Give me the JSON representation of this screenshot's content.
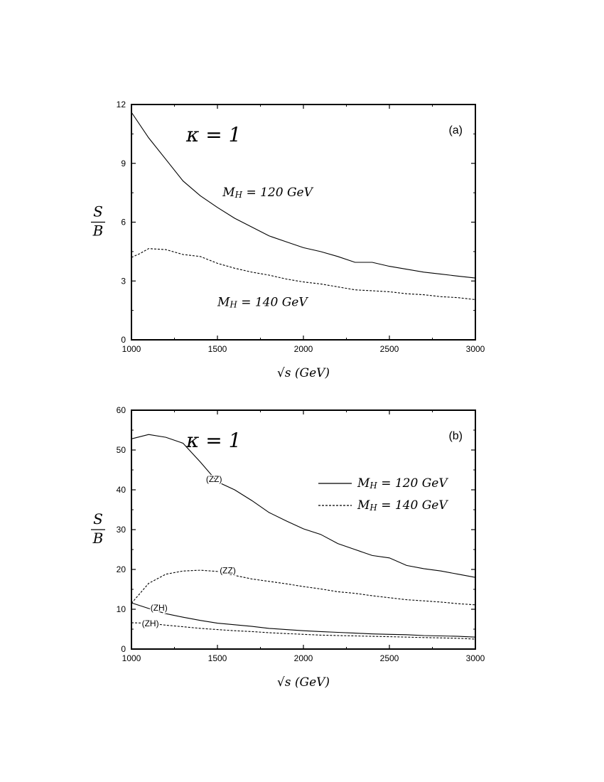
{
  "chart_data": [
    {
      "type": "line",
      "panel_label": "(a)",
      "annotation": "κ = 1",
      "xlabel": "√s (GeV)",
      "ylabel_num": "S",
      "ylabel_den": "B",
      "xlim": [
        1000,
        3000
      ],
      "ylim": [
        0,
        12
      ],
      "xticks": [
        1000,
        1500,
        2000,
        2500,
        3000
      ],
      "yticks": [
        0,
        3,
        6,
        9,
        12
      ],
      "series": [
        {
          "name": "M_H = 120 GeV",
          "style": "solid",
          "x": [
            1000,
            1100,
            1200,
            1300,
            1400,
            1500,
            1600,
            1700,
            1800,
            1900,
            2000,
            2100,
            2200,
            2300,
            2400,
            2500,
            2600,
            2700,
            2800,
            2900,
            3000
          ],
          "y": [
            11.6,
            10.3,
            9.2,
            8.1,
            7.35,
            6.75,
            6.2,
            5.75,
            5.3,
            5.0,
            4.7,
            4.5,
            4.25,
            3.95,
            3.95,
            3.75,
            3.6,
            3.45,
            3.35,
            3.25,
            3.15
          ]
        },
        {
          "name": "M_H = 140 GeV",
          "style": "dashed",
          "x": [
            1000,
            1050,
            1100,
            1200,
            1300,
            1400,
            1500,
            1600,
            1700,
            1800,
            1900,
            2000,
            2100,
            2200,
            2300,
            2400,
            2500,
            2600,
            2700,
            2800,
            2900,
            3000
          ],
          "y": [
            4.2,
            4.4,
            4.65,
            4.6,
            4.35,
            4.25,
            3.9,
            3.65,
            3.45,
            3.3,
            3.1,
            2.95,
            2.85,
            2.7,
            2.55,
            2.5,
            2.45,
            2.35,
            2.3,
            2.2,
            2.15,
            2.05
          ]
        }
      ],
      "labels": [
        {
          "text": "M_H = 120 GeV",
          "x": 1530,
          "y": 7.5
        },
        {
          "text": "M_H = 140 GeV",
          "x": 1500,
          "y": 1.9
        }
      ]
    },
    {
      "type": "line",
      "panel_label": "(b)",
      "annotation": "κ = 1",
      "xlabel": "√s (GeV)",
      "ylabel_num": "S",
      "ylabel_den": "B",
      "xlim": [
        1000,
        3000
      ],
      "ylim": [
        0,
        60
      ],
      "xticks": [
        1000,
        1500,
        2000,
        2500,
        3000
      ],
      "yticks": [
        0,
        10,
        20,
        30,
        40,
        50,
        60
      ],
      "legend": [
        {
          "label": "M_H = 120 GeV",
          "style": "solid"
        },
        {
          "label": "M_H = 140 GeV",
          "style": "dashed"
        }
      ],
      "legend_position": "top-right",
      "series": [
        {
          "name": "(ZZ) M_H = 120 GeV",
          "style": "solid",
          "x": [
            1000,
            1100,
            1200,
            1300,
            1400,
            1500,
            1600,
            1700,
            1800,
            1900,
            2000,
            2100,
            2200,
            2300,
            2400,
            2500,
            2600,
            2700,
            2800,
            2900,
            3000
          ],
          "y": [
            52.8,
            53.9,
            53.2,
            51.7,
            47.0,
            42.0,
            40.0,
            37.3,
            34.3,
            32.2,
            30.2,
            28.8,
            26.5,
            25.0,
            23.5,
            22.9,
            21.0,
            20.2,
            19.6,
            18.8,
            18.0
          ]
        },
        {
          "name": "(ZZ) M_H = 140 GeV",
          "style": "dashed",
          "x": [
            1000,
            1100,
            1200,
            1300,
            1400,
            1500,
            1600,
            1700,
            1800,
            1900,
            2000,
            2100,
            2200,
            2300,
            2400,
            2500,
            2600,
            2700,
            2800,
            2900,
            3000
          ],
          "y": [
            11.5,
            16.5,
            18.8,
            19.6,
            19.8,
            19.5,
            18.5,
            17.6,
            17.0,
            16.4,
            15.7,
            15.1,
            14.4,
            14.0,
            13.4,
            12.9,
            12.4,
            12.1,
            11.8,
            11.4,
            11.1
          ]
        },
        {
          "name": "(ZH) M_H = 120 GeV",
          "style": "solid",
          "x": [
            1000,
            1100,
            1200,
            1300,
            1400,
            1500,
            1600,
            1700,
            1800,
            1900,
            2000,
            2100,
            2200,
            2300,
            2400,
            2500,
            2600,
            2700,
            2800,
            2900,
            3000
          ],
          "y": [
            11.6,
            10.2,
            8.9,
            8.0,
            7.2,
            6.5,
            6.1,
            5.7,
            5.2,
            4.9,
            4.6,
            4.4,
            4.2,
            4.0,
            3.8,
            3.7,
            3.6,
            3.4,
            3.3,
            3.2,
            3.0
          ]
        },
        {
          "name": "(ZH) M_H = 140 GeV",
          "style": "dashed",
          "x": [
            1000,
            1100,
            1200,
            1300,
            1400,
            1500,
            1600,
            1700,
            1800,
            1900,
            2000,
            2100,
            2200,
            2300,
            2400,
            2500,
            2600,
            2700,
            2800,
            2900,
            3000
          ],
          "y": [
            6.6,
            6.5,
            6.0,
            5.6,
            5.2,
            4.9,
            4.6,
            4.4,
            4.1,
            3.9,
            3.7,
            3.5,
            3.4,
            3.3,
            3.2,
            3.1,
            3.0,
            2.9,
            2.8,
            2.7,
            2.5
          ]
        }
      ],
      "labels": [
        {
          "text": "(ZZ)",
          "x": 1480,
          "y": 42.5
        },
        {
          "text": "(ZZ)",
          "x": 1560,
          "y": 19.6
        },
        {
          "text": "(ZH)",
          "x": 1160,
          "y": 10.2
        },
        {
          "text": "(ZH)",
          "x": 1110,
          "y": 6.3
        }
      ]
    }
  ]
}
